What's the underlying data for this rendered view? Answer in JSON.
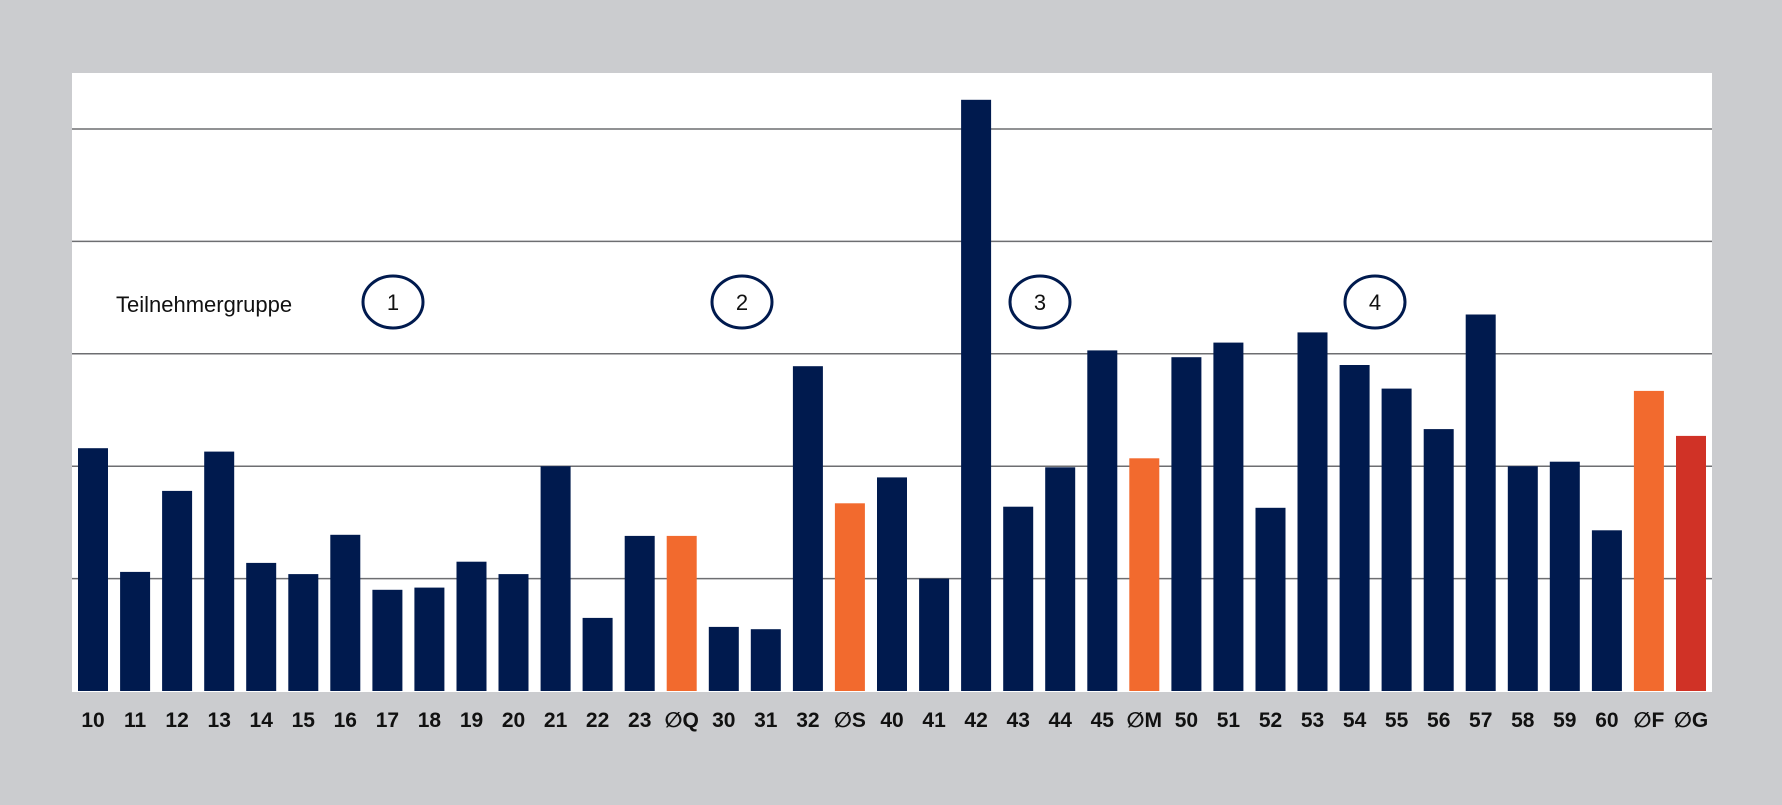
{
  "colors": {
    "background": "#cbcccf",
    "plot_area": "#ffffff",
    "gridline": "#6d6e71",
    "bar_participant": "#001a4e",
    "bar_group_average": "#f26a2e",
    "bar_overall_average": "#d03226",
    "group_circle": "#001a4e"
  },
  "legend": {
    "title": "Teilnehmergruppe",
    "groups": [
      "1",
      "2",
      "3",
      "4"
    ]
  },
  "chart_data": {
    "type": "bar",
    "title": "",
    "xlabel": "",
    "ylabel": "",
    "y_axis_labels_shown": false,
    "ylim": [
      0,
      5.5
    ],
    "grid": true,
    "gridlines_at": [
      1,
      2,
      3,
      4,
      5
    ],
    "categories": [
      "10",
      "11",
      "12",
      "13",
      "14",
      "15",
      "16",
      "17",
      "18",
      "19",
      "20",
      "21",
      "22",
      "23",
      "∅Q",
      "30",
      "31",
      "32",
      "∅S",
      "40",
      "41",
      "42",
      "43",
      "44",
      "45",
      "∅M",
      "50",
      "51",
      "52",
      "53",
      "54",
      "55",
      "56",
      "57",
      "58",
      "59",
      "60",
      "∅F",
      "∅G"
    ],
    "values": [
      2.16,
      1.06,
      1.78,
      2.13,
      1.14,
      1.04,
      1.39,
      0.9,
      0.92,
      1.15,
      1.04,
      2.0,
      0.65,
      1.38,
      1.38,
      0.57,
      0.55,
      2.89,
      1.67,
      1.9,
      1.0,
      5.26,
      1.64,
      1.99,
      3.03,
      2.07,
      2.97,
      3.1,
      1.63,
      3.19,
      2.9,
      2.69,
      2.33,
      3.35,
      2.0,
      2.04,
      1.43,
      2.67,
      2.27
    ],
    "bar_kind": [
      "p",
      "p",
      "p",
      "p",
      "p",
      "p",
      "p",
      "p",
      "p",
      "p",
      "p",
      "p",
      "p",
      "p",
      "a",
      "p",
      "p",
      "p",
      "a",
      "p",
      "p",
      "p",
      "p",
      "p",
      "p",
      "a",
      "p",
      "p",
      "p",
      "p",
      "p",
      "p",
      "p",
      "p",
      "p",
      "p",
      "p",
      "a",
      "o"
    ]
  }
}
